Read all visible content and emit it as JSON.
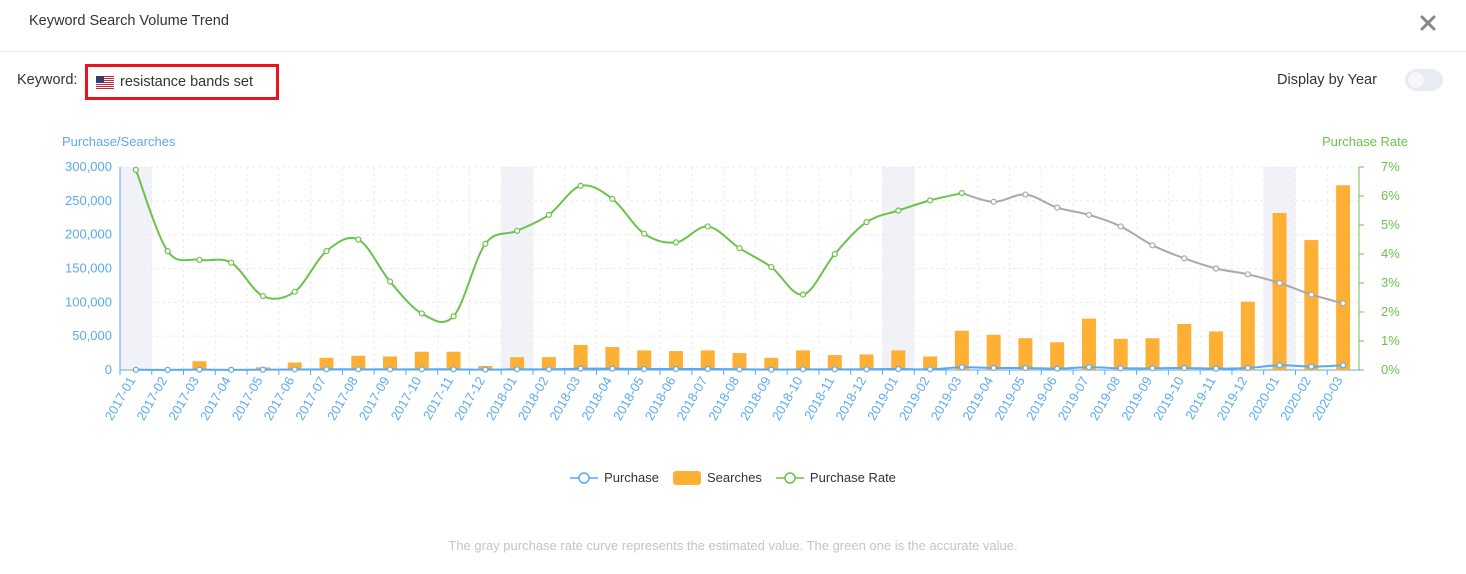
{
  "header": {
    "title": "Keyword Search Volume Trend",
    "close_icon": "close-icon"
  },
  "keyword": {
    "label": "Keyword:",
    "value": "resistance bands set",
    "flag_icon": "us-flag-icon"
  },
  "display_by_year": {
    "label": "Display by Year",
    "enabled": false
  },
  "legend": {
    "purchase": "Purchase",
    "searches": "Searches",
    "purchase_rate": "Purchase Rate"
  },
  "footnote": "The gray purchase rate curve represents the estimated value. The green one is the accurate value.",
  "colors": {
    "purchase": "#5aaaf0",
    "searches": "#fdb034",
    "rate_accurate": "#6cc24a",
    "rate_estimated": "#a8a8b4",
    "left_axis": "#5aaaf0",
    "right_axis": "#6cc24a"
  },
  "chart_data": {
    "type": "bar",
    "left_axis_title": "Purchase/Searches",
    "right_axis_title": "Purchase Rate",
    "left_ylim": [
      0,
      300000
    ],
    "left_ticks": [
      "0",
      "50,000",
      "100,000",
      "150,000",
      "200,000",
      "250,000",
      "300,000"
    ],
    "right_ylim": [
      0,
      7
    ],
    "right_ticks": [
      "0%",
      "1%",
      "2%",
      "3%",
      "4%",
      "5%",
      "6%",
      "7%"
    ],
    "categories": [
      "2017-01",
      "2017-02",
      "2017-03",
      "2017-04",
      "2017-05",
      "2017-06",
      "2017-07",
      "2017-08",
      "2017-09",
      "2017-10",
      "2017-11",
      "2017-12",
      "2018-01",
      "2018-02",
      "2018-03",
      "2018-04",
      "2018-05",
      "2018-06",
      "2018-07",
      "2018-08",
      "2018-09",
      "2018-10",
      "2018-11",
      "2018-12",
      "2019-01",
      "2019-02",
      "2019-03",
      "2019-04",
      "2019-05",
      "2019-06",
      "2019-07",
      "2019-08",
      "2019-09",
      "2019-10",
      "2019-11",
      "2019-12",
      "2020-01",
      "2020-02",
      "2020-03"
    ],
    "highlighted_months": [
      "2017-01",
      "2018-01",
      "2019-01",
      "2020-01"
    ],
    "series": [
      {
        "name": "Searches",
        "type": "bar",
        "axis": "left",
        "values": [
          1000,
          300,
          13000,
          500,
          4000,
          11000,
          18000,
          21000,
          20000,
          27000,
          27000,
          6000,
          19000,
          19000,
          37000,
          34000,
          29000,
          28000,
          29000,
          25000,
          18000,
          29000,
          22000,
          23000,
          29000,
          20000,
          58000,
          52000,
          47000,
          41000,
          76000,
          46000,
          47000,
          68000,
          57000,
          101000,
          232000,
          192000,
          273000
        ]
      },
      {
        "name": "Purchase",
        "type": "line",
        "axis": "left",
        "values": [
          300,
          200,
          500,
          200,
          500,
          800,
          1000,
          1000,
          800,
          1000,
          1000,
          500,
          1000,
          1000,
          2000,
          2000,
          1500,
          1500,
          1500,
          1000,
          600,
          1000,
          1000,
          1000,
          1500,
          1000,
          4000,
          3000,
          3000,
          2000,
          4000,
          2500,
          2500,
          3000,
          2000,
          3000,
          7000,
          5000,
          7000
        ]
      },
      {
        "name": "Purchase Rate",
        "type": "line",
        "axis": "right",
        "unit": "%",
        "accurate_until": "2019-03",
        "values": [
          6.9,
          4.1,
          3.8,
          3.7,
          2.55,
          2.7,
          4.1,
          4.5,
          3.05,
          1.95,
          1.85,
          4.35,
          4.8,
          5.35,
          6.35,
          5.9,
          4.7,
          4.4,
          4.95,
          4.2,
          3.55,
          2.6,
          4.0,
          5.1,
          5.5,
          5.85,
          6.1,
          5.8,
          6.05,
          5.6,
          5.35,
          4.95,
          4.3,
          3.85,
          3.5,
          3.3,
          3.0,
          2.6,
          2.3
        ]
      }
    ],
    "grid": true
  }
}
